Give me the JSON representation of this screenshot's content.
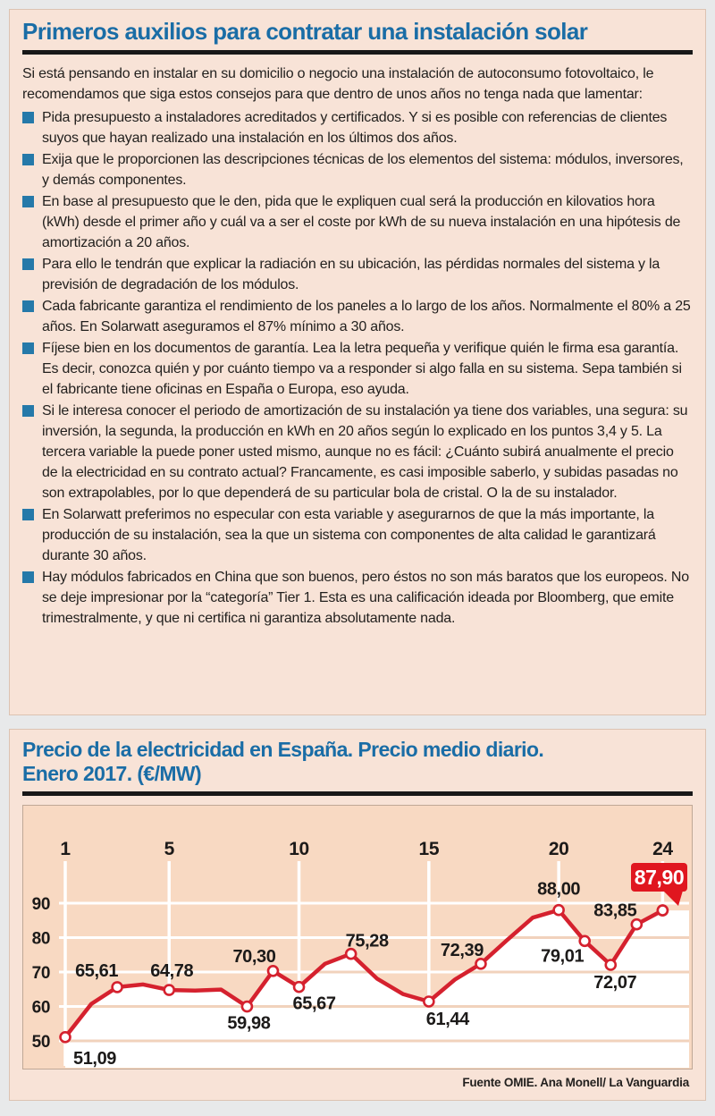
{
  "colors": {
    "page_bg": "#e8e9ea",
    "card_bg": "#f8e3d7",
    "card_border": "#dcc3b2",
    "panel_bg": "#f8d9c2",
    "panel_border": "#bfa896",
    "title_blue": "#1a6da6",
    "text_dark": "#211f1d",
    "rule_black": "#181818",
    "bullet_blue": "#2579a9",
    "line_red": "#d5212e",
    "badge_red": "#e0161f",
    "grid_white": "#ffffff",
    "grid_peach": "#f1d2bc"
  },
  "card1": {
    "title": "Primeros auxilios para contratar una instalación solar",
    "intro": "Si está pensando en instalar en su domicilio o negocio una instalación de autoconsumo fotovoltaico, le recomendamos que siga estos consejos para que dentro de unos años no tenga nada que lamentar:",
    "bullets": [
      "Pida presupuesto a instaladores acreditados y certificados. Y si es posible con referencias de clientes suyos que hayan realizado una instalación en los últimos dos años.",
      "Exija que le proporcionen las descripciones técnicas de los elementos del sistema: módulos, inversores, y demás componentes.",
      "En base al presupuesto que le den, pida que le expliquen cual será la producción en kilovatios hora (kWh) desde el primer año y cuál va a ser el coste por kWh de su nueva instalación en una hipótesis de amortización a 20 años.",
      "Para ello le tendrán que explicar la radiación en su ubicación, las pérdidas normales del sistema y la previsión de degradación de los módulos.",
      "Cada fabricante garantiza el rendimiento de los paneles a lo largo de los años. Normalmente el 80% a 25 años. En Solarwatt aseguramos el 87% mínimo a 30 años.",
      "Fíjese bien en los documentos de garantía. Lea la letra pequeña y verifique quién le firma esa garantía. Es decir, conozca quién y por cuánto tiempo va a responder si algo falla en su sistema. Sepa también si el fabricante tiene oficinas en España o Europa, eso ayuda.",
      "Si le interesa conocer el periodo de amortización de su instalación ya tiene dos variables, una segura: su inversión, la segunda, la producción en kWh en 20 años según lo explicado en los puntos 3,4 y 5. La tercera variable la puede poner usted mismo, aunque no es fácil: ¿Cuánto subirá anualmente el precio de la electricidad en su contrato actual? Francamente, es casi imposible saberlo, y subidas pasadas no son extrapolables, por lo que dependerá de su particular bola de cristal. O la de su instalador.",
      "En Solarwatt preferimos no especular con esta variable y asegurarnos de que la más importante, la producción de su instalación, sea la que un sistema con componentes de alta calidad le garantizará durante 30 años.",
      "Hay módulos fabricados en China que son buenos, pero éstos no son más baratos que los europeos. No se deje impresionar por la  “categoría” Tier 1. Esta es una calificación ideada por Bloomberg, que emite trimestralmente, y que ni certifica ni garantiza absolutamente nada."
    ]
  },
  "card2": {
    "title_line1": "Precio de la electricidad en España. Precio medio diario.",
    "title_line2": "Enero 2017. (€/MW)",
    "source": "Fuente OMIE. Ana Monell/ La Vanguardia"
  },
  "chart_data": {
    "type": "line",
    "title": "Precio de la electricidad en España. Precio medio diario. Enero 2017. (€/MW)",
    "x": [
      1,
      2,
      3,
      4,
      5,
      6,
      7,
      8,
      9,
      10,
      11,
      12,
      13,
      14,
      15,
      16,
      17,
      18,
      19,
      20,
      21,
      22,
      23,
      24
    ],
    "values": [
      51.09,
      60.7,
      65.61,
      66.4,
      64.78,
      64.6,
      64.9,
      59.98,
      70.3,
      65.67,
      72.4,
      75.28,
      68.1,
      63.6,
      61.44,
      67.8,
      72.39,
      79.2,
      85.8,
      88.0,
      79.01,
      72.07,
      83.85,
      87.9
    ],
    "labeled_days": [
      1,
      3,
      5,
      8,
      9,
      10,
      12,
      15,
      17,
      20,
      21,
      22,
      23,
      24
    ],
    "point_labels": {
      "1": "51,09",
      "3": "65,61",
      "5": "64,78",
      "8": "59,98",
      "9": "70,30",
      "10": "65,67",
      "12": "75,28",
      "15": "61,44",
      "17": "72,39",
      "20": "88,00",
      "21": "79,01",
      "22": "72,07",
      "23": "83,85",
      "24": "87,90"
    },
    "highlight_point": {
      "x": 24,
      "label": "87,90"
    },
    "x_ticks": [
      1,
      5,
      10,
      15,
      20,
      24
    ],
    "y_ticks": [
      90,
      80,
      70,
      60,
      50
    ],
    "ylim": [
      42,
      95
    ],
    "grid": true,
    "legend": "none",
    "marker": "open-circle"
  }
}
